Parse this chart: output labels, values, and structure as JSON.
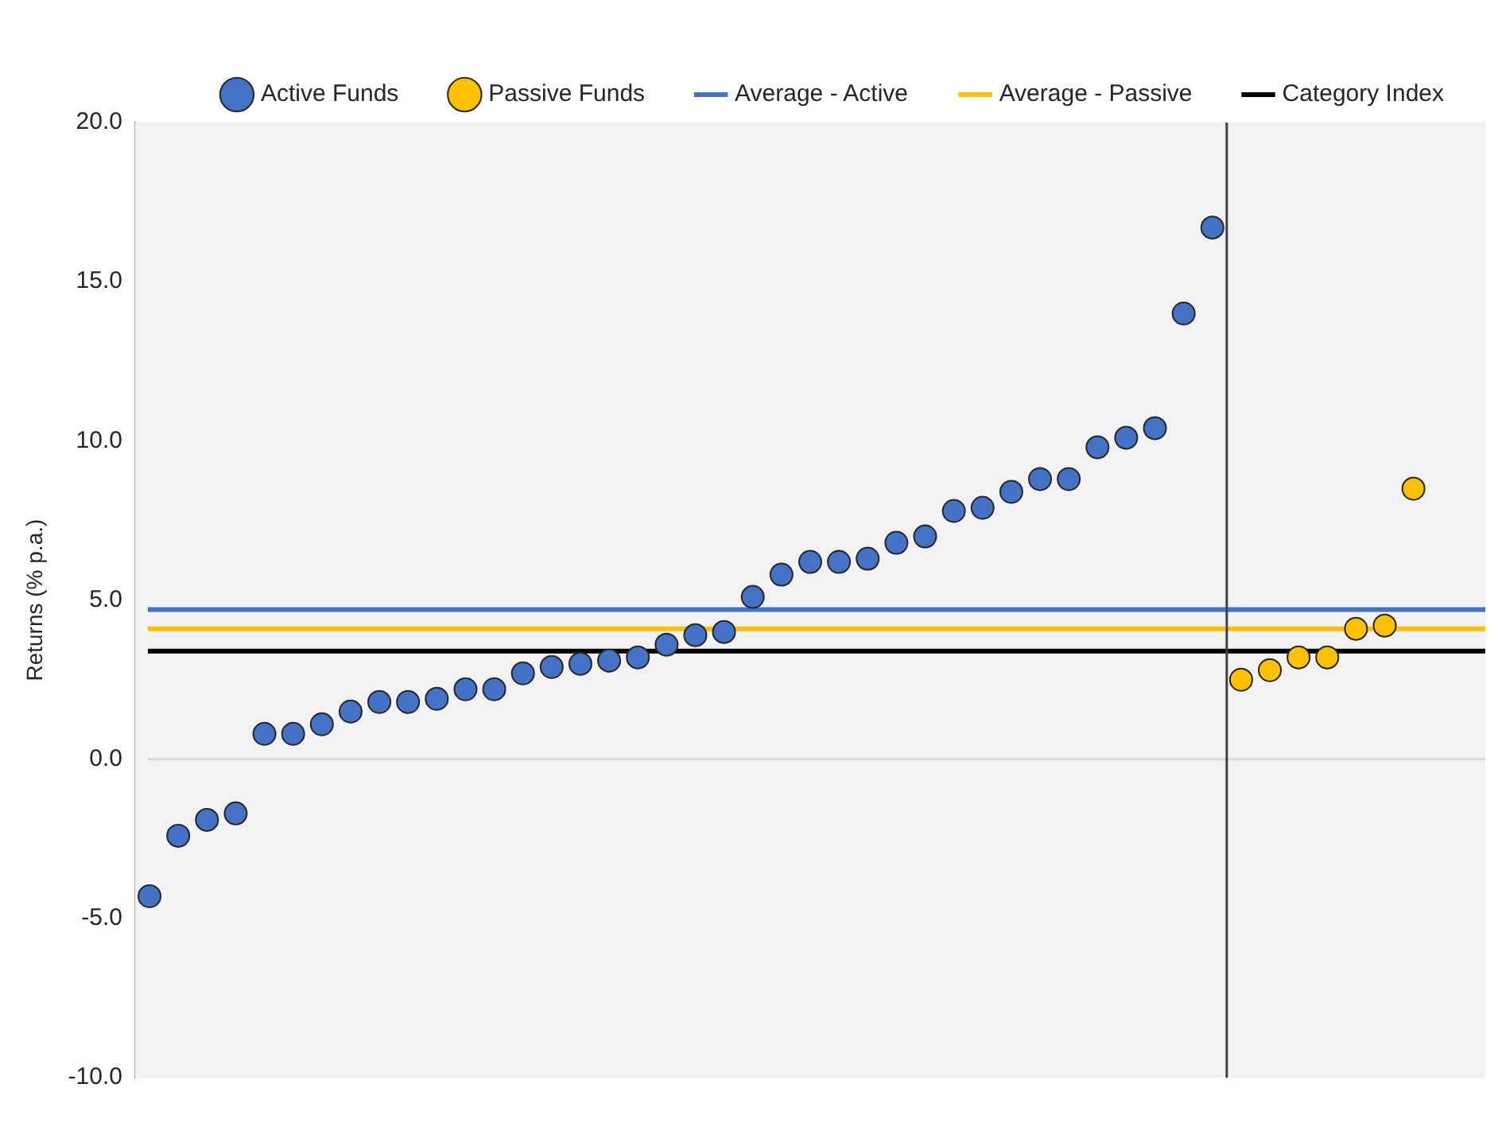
{
  "chart_data": {
    "type": "scatter",
    "ylabel": "Returns (% p.a.)",
    "categories": [
      null,
      null,
      null,
      null,
      null,
      null,
      null,
      null,
      null,
      null,
      null,
      null,
      null,
      null,
      null,
      null,
      null,
      null,
      null,
      null,
      null,
      null,
      null,
      null,
      null,
      null,
      null,
      null,
      null,
      null,
      null,
      null,
      null,
      null,
      null,
      null,
      null,
      null,
      null,
      null,
      null,
      null,
      null,
      null,
      null,
      null,
      null
    ],
    "ylim": [
      -10,
      20
    ],
    "yticks": [
      {
        "value": -10,
        "label": "-10.0"
      },
      {
        "value": -5,
        "label": "-5.0"
      },
      {
        "value": 0,
        "label": "0.0"
      },
      {
        "value": 5,
        "label": "5.0"
      },
      {
        "value": 10,
        "label": "10.0"
      },
      {
        "value": 15,
        "label": "15.0"
      },
      {
        "value": 20,
        "label": "20.0"
      }
    ],
    "grid": false,
    "legend": "top",
    "marker": "circle",
    "series": [
      {
        "name": "Active Funds",
        "color": "#4472c4",
        "values": [
          -4.3,
          -2.4,
          -1.9,
          -1.7,
          0.8,
          0.8,
          1.1,
          1.5,
          1.8,
          1.8,
          1.9,
          2.2,
          2.2,
          2.7,
          2.9,
          3.0,
          3.1,
          3.2,
          3.6,
          3.9,
          4.0,
          5.1,
          5.8,
          6.2,
          6.2,
          6.3,
          6.8,
          7.0,
          7.8,
          7.9,
          8.4,
          8.8,
          8.8,
          9.8,
          10.1,
          10.4,
          14.0,
          16.7,
          null,
          null,
          null,
          null,
          null,
          null,
          null,
          null,
          null
        ]
      },
      {
        "name": "Passive Funds",
        "color": "#ffc000",
        "values": [
          null,
          null,
          null,
          null,
          null,
          null,
          null,
          null,
          null,
          null,
          null,
          null,
          null,
          null,
          null,
          null,
          null,
          null,
          null,
          null,
          null,
          null,
          null,
          null,
          null,
          null,
          null,
          null,
          null,
          null,
          null,
          null,
          null,
          null,
          null,
          null,
          null,
          null,
          2.5,
          2.8,
          3.2,
          3.2,
          4.1,
          4.2,
          8.5,
          null,
          null
        ]
      }
    ],
    "ref_lines": [
      {
        "axis": "y",
        "value": 4.7,
        "label": "Average - Active",
        "color": "#4472c4"
      },
      {
        "axis": "y",
        "value": 4.1,
        "label": "Average - Passive",
        "color": "#ffc000"
      },
      {
        "axis": "y",
        "value": 3.4,
        "label": "Category Index",
        "color": "#000000"
      },
      {
        "axis": "y",
        "value": 0,
        "color": "#d9d9d9"
      }
    ]
  }
}
